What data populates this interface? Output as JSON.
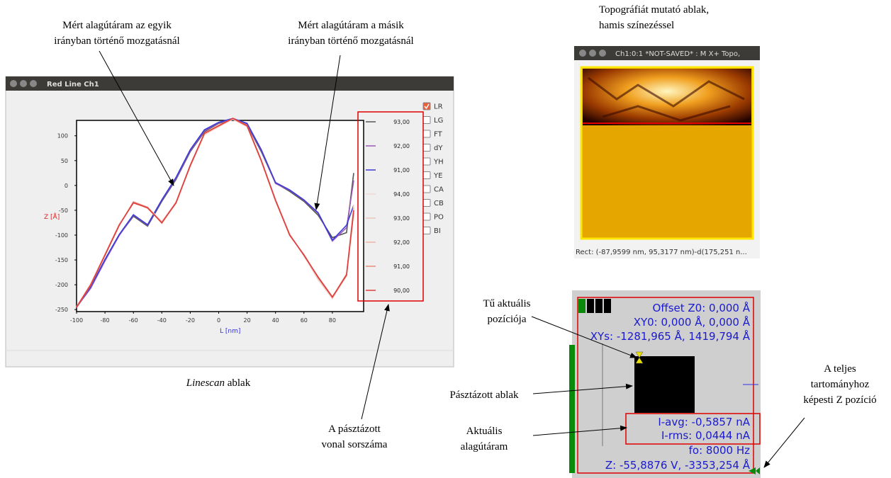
{
  "annotations": {
    "current_one_direction": [
      "Mért alagútáram az egyik",
      "irányban  történő mozgatásnál"
    ],
    "current_other_direction": [
      "Mért alagútáram a másik",
      "irányban  történő mozgatásnál"
    ],
    "linescan_caption": {
      "italic": "Linescan",
      "rest": "ablak"
    },
    "line_number": [
      "A pásztázott",
      "vonal sorszáma"
    ],
    "topography_caption": [
      "Topográfiát mutató ablak,",
      "hamis színezéssel"
    ],
    "tip_position": [
      "Tű aktuális",
      "pozíciója"
    ],
    "scan_window": "Pásztázott ablak",
    "actual_current": [
      "Aktuális",
      "alagútáram"
    ],
    "z_position": [
      "A teljes",
      "tartományhoz",
      "képesti Z pozíció"
    ]
  },
  "linescan_window": {
    "title": "Red Line Ch1",
    "chart": {
      "type": "line",
      "xlabel": "L [nm]",
      "ylabel": "Z [Å]",
      "x": [
        -100,
        -90,
        -80,
        -70,
        -60,
        -50,
        -40,
        -30,
        -20,
        -10,
        0,
        10,
        20,
        30,
        40,
        50,
        60,
        70,
        80,
        90,
        95
      ],
      "xlim": [
        -100,
        102
      ],
      "ylim": [
        -254,
        131
      ],
      "xticks": [
        -100,
        -80,
        -60,
        -40,
        -20,
        0,
        20,
        40,
        60,
        80
      ],
      "yticks": [
        100,
        50,
        0,
        -50,
        -100,
        -150,
        -200,
        -250
      ],
      "series": [
        {
          "name": "93,00",
          "color": "#555555",
          "values": [
            -245,
            -205,
            -150,
            -100,
            -62,
            -82,
            -32,
            12,
            68,
            108,
            125,
            133,
            122,
            68,
            5,
            -12,
            -32,
            -60,
            -105,
            -95,
            25
          ]
        },
        {
          "name": "92,00",
          "color": "#9b59b6",
          "values": [
            -245,
            -207,
            -152,
            -101,
            -60,
            -80,
            -30,
            14,
            70,
            110,
            126,
            134,
            124,
            70,
            4,
            -10,
            -30,
            -56,
            -112,
            -85,
            10
          ]
        },
        {
          "name": "91,00",
          "color": "#3a3ad8",
          "values": [
            -246,
            -204,
            -149,
            -99,
            -59,
            -79,
            -29,
            16,
            72,
            112,
            127,
            135,
            125,
            72,
            6,
            -9,
            -29,
            -55,
            -110,
            -80,
            -40
          ]
        },
        {
          "name": "94,00",
          "color": "#f3d8d0",
          "values": [
            -244,
            -198,
            -138,
            -78,
            -36,
            -44,
            -72,
            -34,
            38,
            102,
            118,
            133,
            118,
            48,
            -32,
            -98,
            -142,
            -190,
            -228,
            -182,
            -40
          ]
        },
        {
          "name": "93,00",
          "color": "#e9c6bc",
          "values": [
            -245,
            -199,
            -139,
            -79,
            -35,
            -45,
            -74,
            -35,
            39,
            103,
            119,
            134,
            119,
            49,
            -30,
            -100,
            -140,
            -187,
            -226,
            -180,
            -45
          ]
        },
        {
          "name": "92,00",
          "color": "#efb4a4",
          "values": [
            -245,
            -200,
            -140,
            -80,
            -34,
            -46,
            -75,
            -36,
            40,
            104,
            120,
            135,
            120,
            50,
            -31,
            -101,
            -139,
            -186,
            -225,
            -178,
            -50
          ]
        },
        {
          "name": "91,00",
          "color": "#e88c7c",
          "values": [
            -246,
            -201,
            -141,
            -81,
            -33,
            -44,
            -76,
            -34,
            41,
            105,
            121,
            135,
            121,
            51,
            -29,
            -99,
            -141,
            -184,
            -224,
            -181,
            -55
          ]
        },
        {
          "name": "90,00",
          "color": "#e03c3c",
          "values": [
            -245,
            -200,
            -140,
            -80,
            -35,
            -45,
            -75,
            -35,
            40,
            105,
            120,
            135,
            120,
            50,
            -30,
            -100,
            -140,
            -185,
            -225,
            -180,
            -50
          ]
        }
      ]
    },
    "checkboxes": [
      {
        "label": "LR",
        "checked": true
      },
      {
        "label": "LG",
        "checked": false
      },
      {
        "label": "FT",
        "checked": false
      },
      {
        "label": "dY",
        "checked": false
      },
      {
        "label": "YH",
        "checked": false
      },
      {
        "label": "YE",
        "checked": false
      },
      {
        "label": "CA",
        "checked": false
      },
      {
        "label": "CB",
        "checked": false
      },
      {
        "label": "PO",
        "checked": false
      },
      {
        "label": "BI",
        "checked": false
      }
    ]
  },
  "topography_window": {
    "title": "Ch1:0:1 *NOT-SAVED* : M X+ Topo,",
    "status": "Rect: (-87,9599 nm, 95,3177 nm)-d(175,251 n..."
  },
  "control_panel": {
    "offset": "Offset Z0:  0,000 Å",
    "xy0": "XY0:  0,000 Å,   0,000 Å",
    "xys": "XYs: -1281,965 Å, 1419,794 Å",
    "i_avg": "I-avg: -0,5857 nA",
    "i_rms": "I-rms: 0,0444 nA",
    "fo": "fo:   8000 Hz",
    "z": "Z: -55,8876 V, -3353,254 Å"
  }
}
